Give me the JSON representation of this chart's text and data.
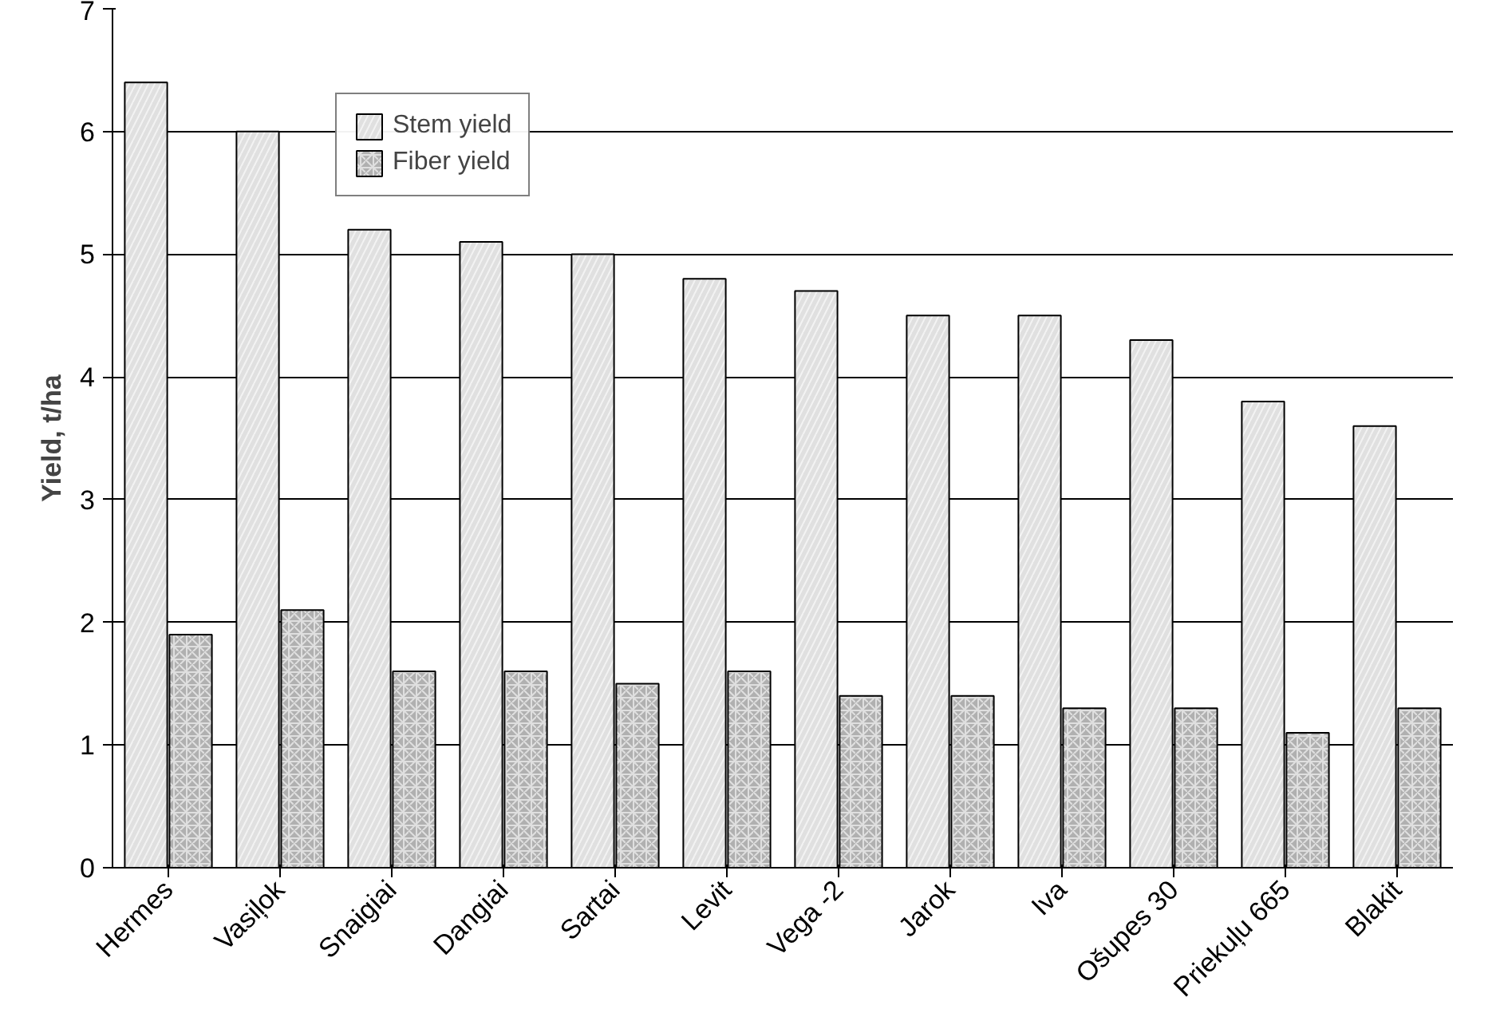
{
  "chart_data": {
    "type": "bar",
    "ylabel": "Yield, t/ha",
    "categories": [
      "Hermes",
      "Vasiļok",
      "Snaigiai",
      "Dangiai",
      "Sartai",
      "Levit",
      "Vega -2",
      "Jarok",
      "Iva",
      "Ošupes 30",
      "Priekuļu 665",
      "Blakit"
    ],
    "series": [
      {
        "name": "Stem yield",
        "color": "#e0e0e0",
        "values": [
          6.4,
          6.0,
          5.2,
          5.1,
          5.0,
          4.8,
          4.7,
          4.5,
          4.5,
          4.3,
          3.8,
          3.6
        ]
      },
      {
        "name": "Fiber yield",
        "color": "#b0b0b0",
        "values": [
          1.9,
          2.1,
          1.6,
          1.6,
          1.5,
          1.6,
          1.4,
          1.4,
          1.3,
          1.3,
          1.1,
          1.3
        ]
      }
    ],
    "ylim": [
      0,
      7
    ],
    "yticks": [
      0,
      1,
      2,
      3,
      4,
      5,
      6,
      7
    ],
    "grid": "y",
    "legend": "top left"
  }
}
